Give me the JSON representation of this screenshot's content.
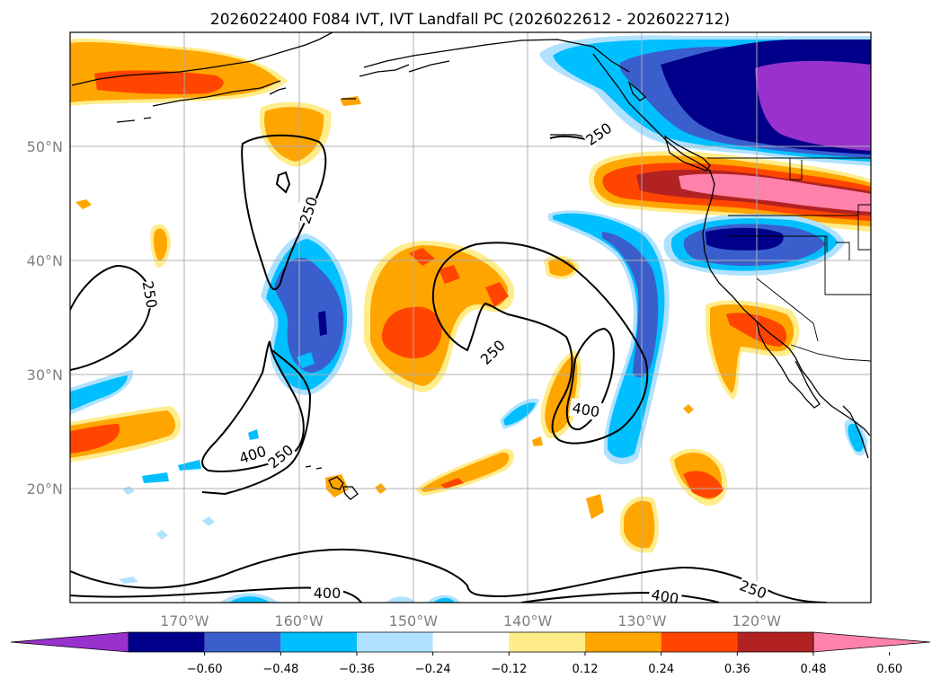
{
  "chart_data": {
    "type": "contour-map",
    "title": "2026022400 F084 IVT, IVT Landfall PC (2026022612 - 2026022712)",
    "x_ticks": [
      "170°W",
      "160°W",
      "150°W",
      "140°W",
      "130°W",
      "120°W"
    ],
    "y_ticks": [
      "50°N",
      "40°N",
      "30°N",
      "20°N"
    ],
    "lon_range": [
      -180,
      -110
    ],
    "lat_range": [
      10,
      60
    ],
    "colorbar": {
      "levels": [
        "−0.60",
        "−0.48",
        "−0.36",
        "−0.24",
        "−0.12",
        "0.12",
        "0.24",
        "0.36",
        "0.48",
        "0.60"
      ],
      "colors": [
        "#9932cc",
        "#00008b",
        "#3a5fcd",
        "#00bfff",
        "#b0e2ff",
        "#ffffff",
        "#ffec8b",
        "#ffa500",
        "#ff4500",
        "#b22222",
        "#ff82ab"
      ],
      "extend": "both"
    },
    "ivt_contour_labels": [
      "250",
      "250",
      "250",
      "250",
      "250",
      "250",
      "400",
      "400",
      "400",
      "400"
    ],
    "ivt_contour_levels": [
      250,
      400
    ]
  }
}
